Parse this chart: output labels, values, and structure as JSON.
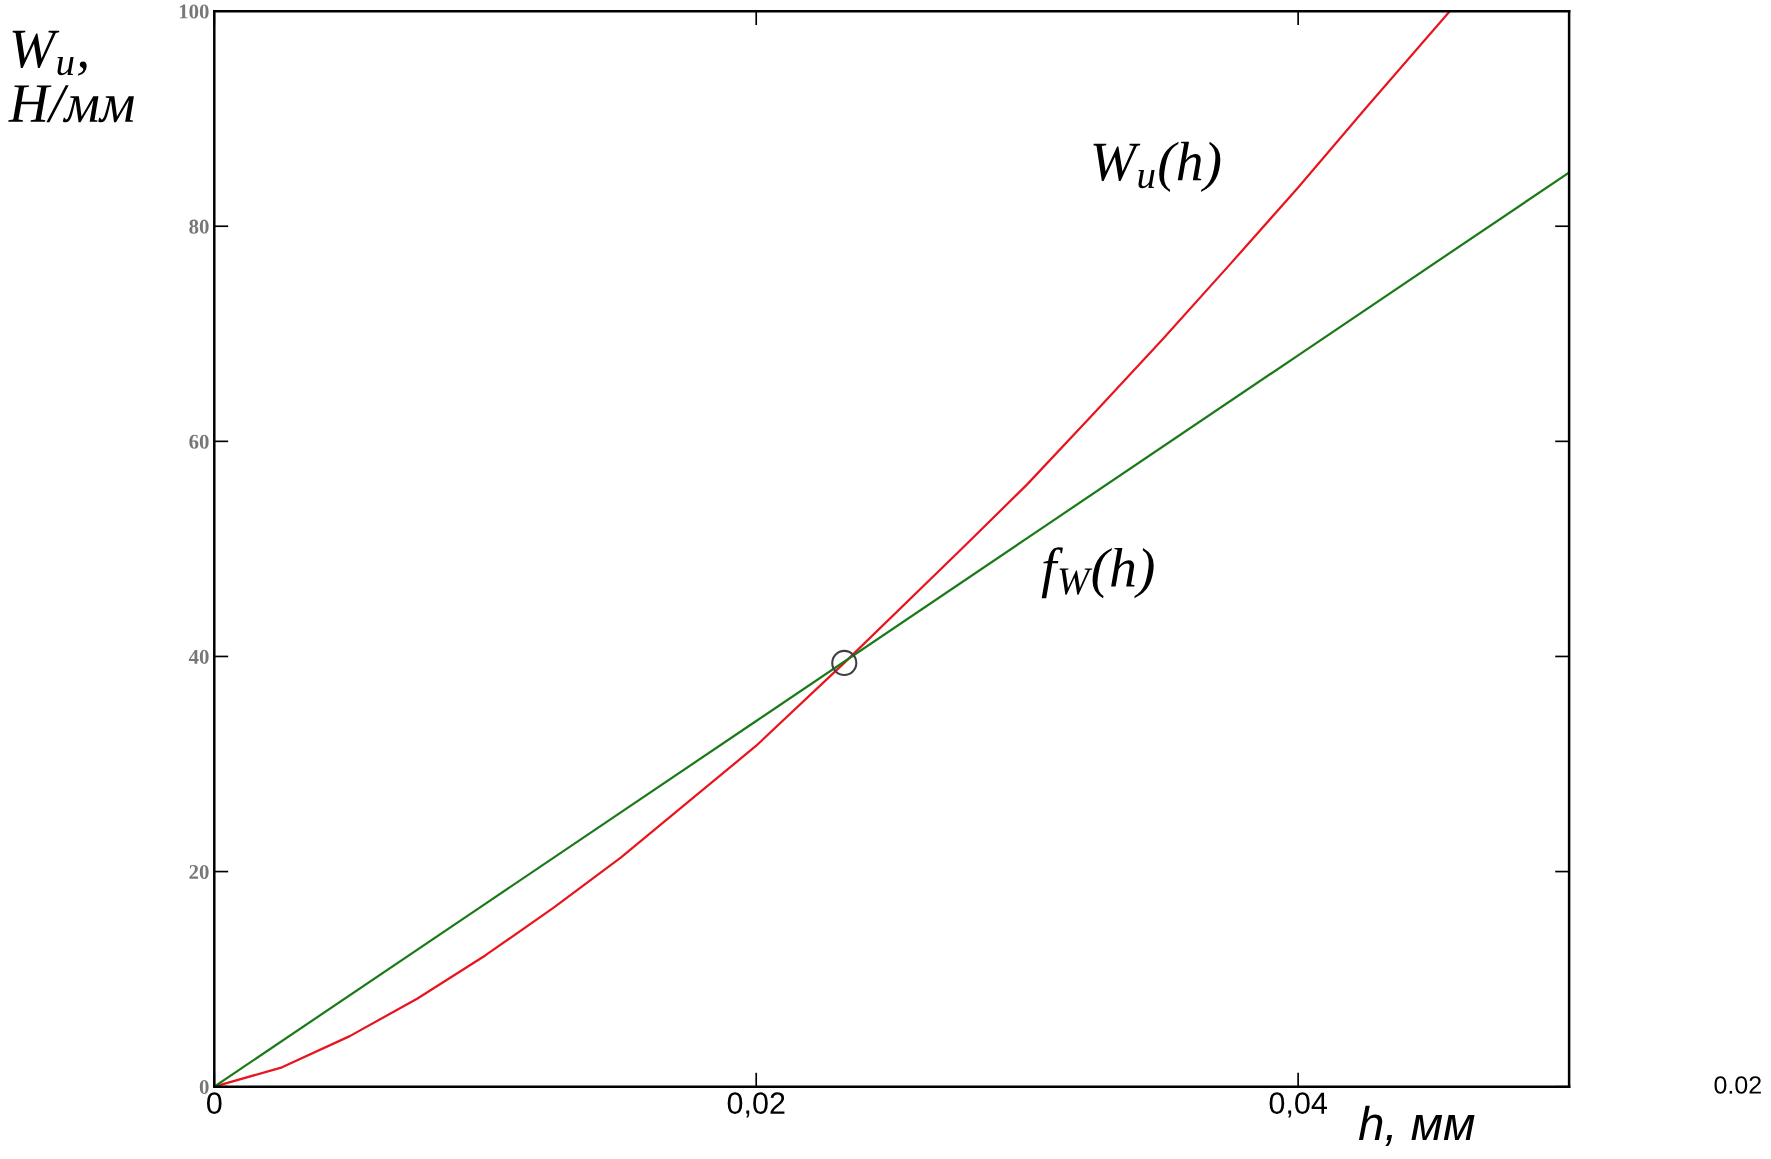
{
  "chart_data": {
    "type": "line",
    "xlabel": "h, мм",
    "ylabel": "W$_{u}$,\nН/мм",
    "xlim": [
      0,
      0.05
    ],
    "ylim": [
      0,
      100
    ],
    "xticks": [
      {
        "value": 0,
        "label": "0"
      },
      {
        "value": 0.02,
        "label": "0,02"
      },
      {
        "value": 0.04,
        "label": "0,04"
      }
    ],
    "yticks": [
      0,
      20,
      40,
      60,
      80,
      100
    ],
    "grid": false,
    "legend": false,
    "line_style": "solid",
    "series": [
      {
        "name": "W$_{u}$(h)",
        "color": "#e8141e",
        "x": [
          0,
          0.0025,
          0.005,
          0.0075,
          0.01,
          0.0125,
          0.015,
          0.0175,
          0.02,
          0.02325,
          0.0275,
          0.03,
          0.0325,
          0.035,
          0.0375,
          0.04,
          0.0425,
          0.0456
        ],
        "values": [
          0,
          1.8,
          4.7,
          8.2,
          12.2,
          16.6,
          21.3,
          26.5,
          31.7,
          39.4,
          49.8,
          56,
          62.7,
          69.5,
          76.5,
          83.6,
          91,
          100
        ]
      },
      {
        "name": "f$_{W}$(h)",
        "color": "#1a7a1a",
        "x": [
          0,
          0.01,
          0.02,
          0.03,
          0.04,
          0.05
        ],
        "values": [
          0,
          17,
          34,
          51,
          68,
          85
        ]
      },
      {
        "type": "scatter",
        "marker": "circle",
        "color": "#404040",
        "x": [
          0.02325
        ],
        "values": [
          39.4
        ]
      }
    ],
    "annotations": [
      "0.02"
    ]
  }
}
